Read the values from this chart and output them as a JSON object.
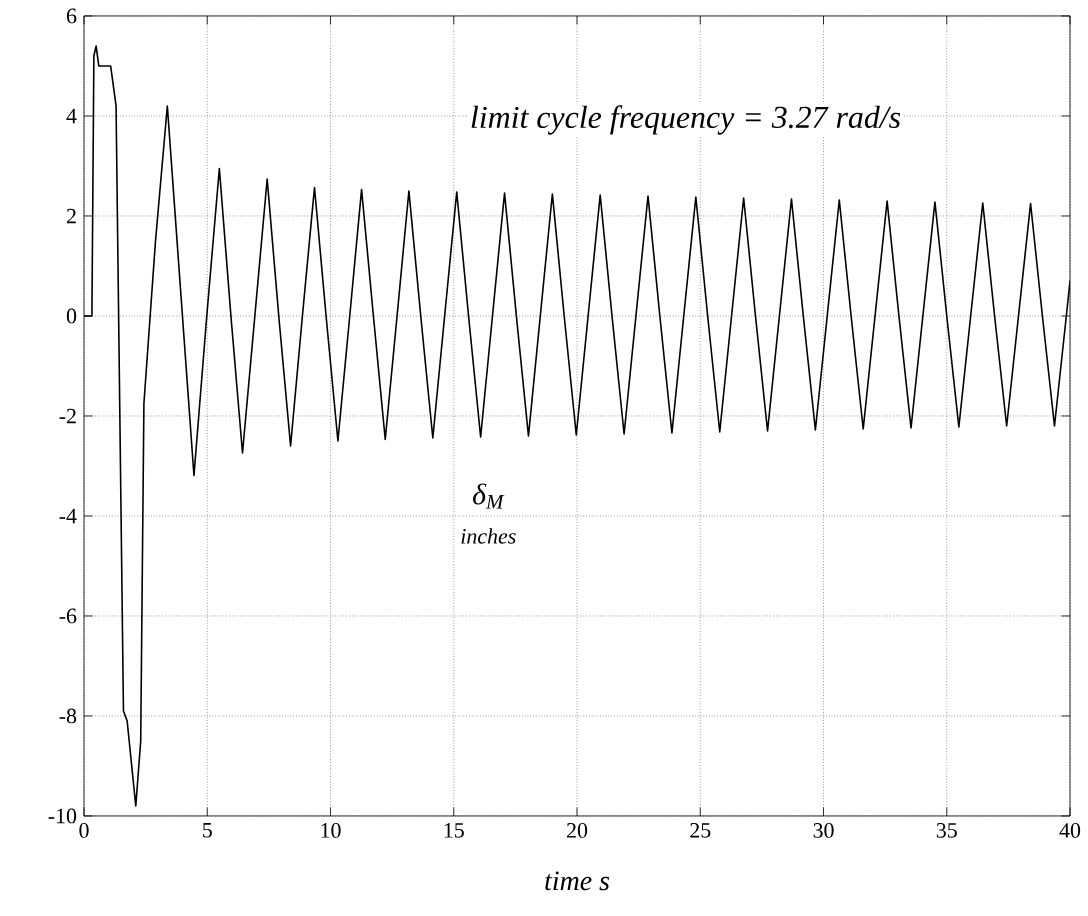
{
  "chart_data": {
    "type": "line",
    "xlabel": "time s",
    "annotations": [
      "limit cycle frequency = 3.27 rad/s",
      "δ$_{M}$",
      "inches"
    ],
    "xlim": [
      0,
      40
    ],
    "ylim": [
      -10,
      6
    ],
    "xticks": [
      0,
      5,
      10,
      15,
      20,
      25,
      30,
      35,
      40
    ],
    "yticks": [
      -10,
      -8,
      -6,
      -4,
      -2,
      0,
      2,
      4,
      6
    ],
    "grid": true,
    "series": [
      {
        "color": "#000000",
        "line_style": "solid",
        "x": [
          0,
          0.32,
          0.4,
          0.49,
          0.6,
          1.08,
          1.3,
          1.6,
          1.75,
          2.1,
          2.3,
          2.43,
          2.9,
          3.38,
          3.92,
          4.46,
          4.98,
          5.49,
          5.96,
          6.43,
          6.93,
          7.43,
          7.9,
          8.38,
          8.86,
          9.35,
          9.82,
          10.3,
          10.78,
          11.26,
          11.74,
          12.22,
          12.7,
          13.18,
          13.66,
          14.15,
          14.63,
          15.12,
          15.6,
          16.09,
          16.57,
          17.06,
          17.54,
          18.03,
          18.51,
          19.0,
          19.48,
          19.97,
          20.45,
          20.94,
          21.42,
          21.91,
          22.39,
          22.88,
          23.36,
          23.85,
          24.33,
          24.82,
          25.3,
          25.79,
          26.27,
          26.76,
          27.24,
          27.73,
          28.21,
          28.7,
          29.18,
          29.67,
          30.15,
          30.64,
          31.12,
          31.61,
          32.09,
          32.58,
          33.06,
          33.55,
          34.03,
          34.52,
          35.0,
          35.49,
          35.97,
          36.46,
          36.94,
          37.43,
          37.91,
          38.4,
          38.88,
          39.37,
          39.85,
          40
        ],
        "values": [
          0,
          0,
          5.2,
          5.4,
          5.0,
          5.0,
          4.2,
          -7.9,
          -8.1,
          -9.8,
          -8.5,
          -1.75,
          1.5,
          4.2,
          0.5,
          -3.19,
          0,
          2.95,
          0,
          -2.74,
          0,
          2.74,
          0,
          -2.6,
          0,
          2.57,
          0,
          -2.5,
          0,
          2.53,
          0,
          -2.47,
          0,
          2.5,
          0,
          -2.44,
          0,
          2.48,
          0,
          -2.42,
          0,
          2.46,
          0,
          -2.4,
          0,
          2.44,
          0,
          -2.38,
          0,
          2.42,
          0,
          -2.36,
          0,
          2.4,
          0,
          -2.34,
          0,
          2.38,
          0,
          -2.32,
          0,
          2.36,
          0,
          -2.3,
          0,
          2.34,
          0,
          -2.28,
          0,
          2.32,
          0,
          -2.26,
          0,
          2.3,
          0,
          -2.24,
          0,
          2.28,
          0,
          -2.22,
          0,
          2.26,
          0,
          -2.2,
          0,
          2.25,
          0,
          -2.2,
          0,
          0.7
        ]
      }
    ]
  }
}
